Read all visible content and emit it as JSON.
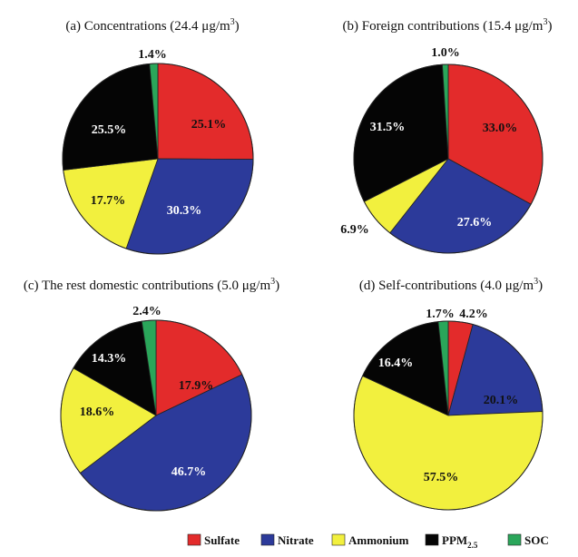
{
  "legend": [
    {
      "name": "Sulfate",
      "color": "#e32b2b"
    },
    {
      "name": "Nitrate",
      "color": "#2c3a9a"
    },
    {
      "name": "Ammonium",
      "color": "#f2f03e"
    },
    {
      "name": "PPM",
      "sub": "2.5",
      "color": "#050505"
    },
    {
      "name": "SOC",
      "color": "#2aa65a"
    }
  ],
  "chart_data": [
    {
      "type": "pie",
      "title_main": "(a) Concentrations (24.4 μg/m",
      "title_sup": "3",
      "title_end": ")",
      "categories": [
        "Sulfate",
        "Nitrate",
        "Ammonium",
        "PPM2.5",
        "SOC"
      ],
      "values": [
        25.1,
        30.3,
        17.7,
        25.5,
        1.4
      ],
      "labels": [
        "25.1%",
        "30.3%",
        "17.7%",
        "25.5%",
        "1.4%"
      ]
    },
    {
      "type": "pie",
      "title_main": "(b) Foreign contributions (15.4 μg/m",
      "title_sup": "3",
      "title_end": ")",
      "categories": [
        "Sulfate",
        "Nitrate",
        "Ammonium",
        "PPM2.5",
        "SOC"
      ],
      "values": [
        33.0,
        27.6,
        6.9,
        31.5,
        1.0
      ],
      "labels": [
        "33.0%",
        "27.6%",
        "6.9%",
        "31.5%",
        "1.0%"
      ]
    },
    {
      "type": "pie",
      "title_main": "(c) The rest domestic contributions (5.0 μg/m",
      "title_sup": "3",
      "title_end": ")",
      "categories": [
        "Sulfate",
        "Nitrate",
        "Ammonium",
        "PPM2.5",
        "SOC"
      ],
      "values": [
        17.9,
        46.7,
        18.6,
        14.3,
        2.4
      ],
      "labels": [
        "17.9%",
        "46.7%",
        "18.6%",
        "14.3%",
        "2.4%"
      ]
    },
    {
      "type": "pie",
      "title_main": "(d) Self-contributions (4.0 μg/m",
      "title_sup": "3",
      "title_end": ")",
      "categories": [
        "Sulfate",
        "Nitrate",
        "Ammonium",
        "PPM2.5",
        "SOC"
      ],
      "values": [
        4.2,
        20.1,
        57.5,
        16.4,
        1.7
      ],
      "labels": [
        "4.2%",
        "20.1%",
        "57.5%",
        "16.4%",
        "1.7%"
      ]
    }
  ]
}
